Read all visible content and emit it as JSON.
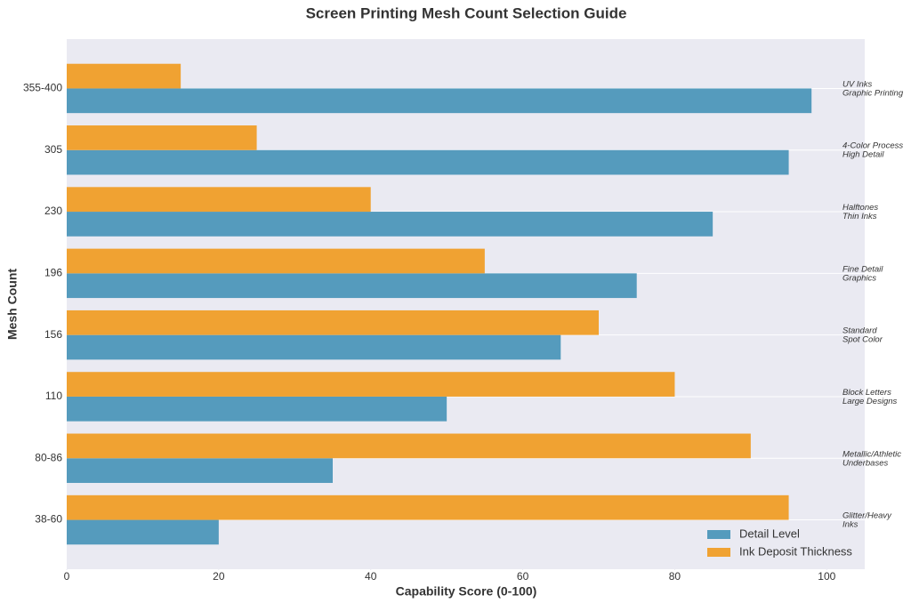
{
  "chart_data": {
    "type": "hbar",
    "title": "Screen Printing Mesh Count Selection Guide",
    "x_label": "Capability Score (0-100)",
    "y_label": "Mesh Count",
    "categories": [
      "38-60",
      "80-86",
      "110",
      "156",
      "196",
      "230",
      "305",
      "355-400"
    ],
    "series": [
      {
        "name": "Detail Level",
        "color": "#559bbd",
        "values": [
          20,
          35,
          50,
          65,
          75,
          85,
          95,
          98
        ]
      },
      {
        "name": "Ink Deposit Thickness",
        "color": "#f0a232",
        "values": [
          95,
          90,
          80,
          70,
          55,
          40,
          25,
          15
        ]
      }
    ],
    "annotations": [
      [
        "Glitter/Heavy",
        "Inks"
      ],
      [
        "Metallic/Athletic",
        "Underbases"
      ],
      [
        "Block Letters",
        "Large Designs"
      ],
      [
        "Standard",
        "Spot Color"
      ],
      [
        "Fine Detail",
        "Graphics"
      ],
      [
        "Halftones",
        "Thin Inks"
      ],
      [
        "4-Color Process",
        "High Detail"
      ],
      [
        "UV Inks",
        "Graphic Printing"
      ]
    ],
    "xlim": [
      0,
      105
    ],
    "xticks": [
      0,
      20,
      40,
      60,
      80,
      100
    ],
    "grid": "y",
    "legend": "lower right"
  }
}
